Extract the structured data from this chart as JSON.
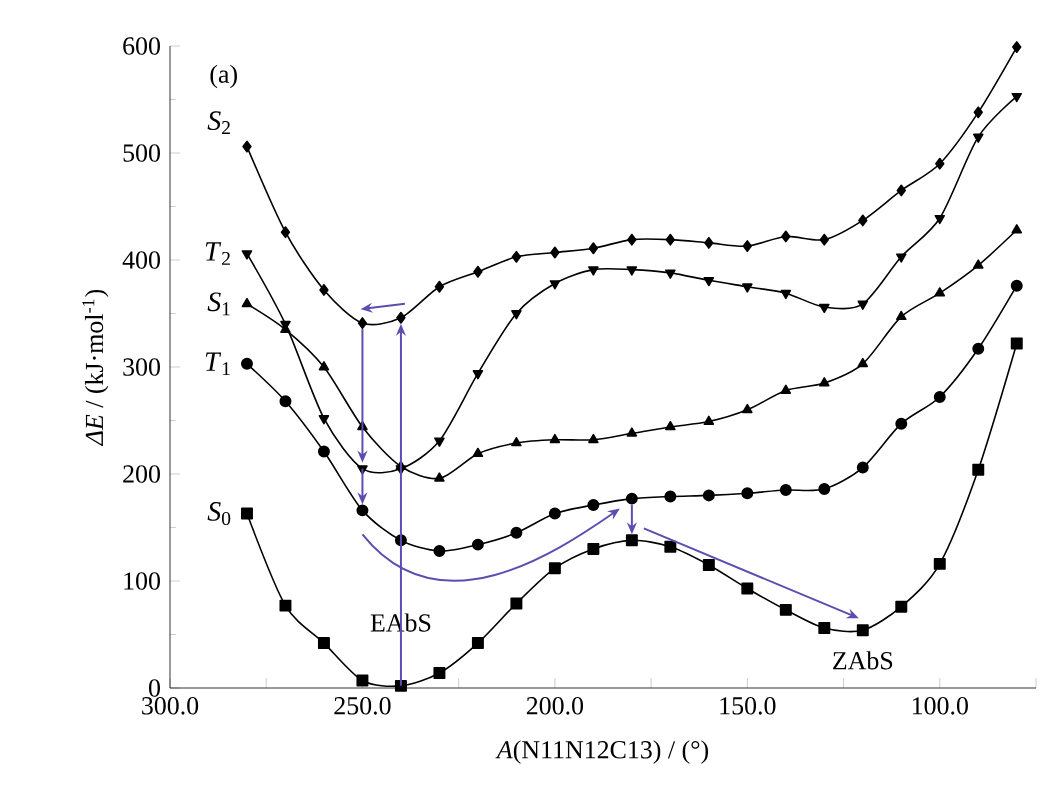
{
  "chart_data": {
    "type": "line",
    "xlabel": "*A*(N11N12C13) / (°)",
    "ylabel": "*ΔE* / (kJ·mol$^{-1}$)",
    "x": [
      280,
      270,
      260,
      250,
      240,
      230,
      220,
      210,
      200,
      190,
      180,
      170,
      160,
      150,
      140,
      130,
      120,
      110,
      100,
      90,
      80
    ],
    "xlim": [
      300,
      75
    ],
    "xticks": [
      {
        "value": 300,
        "label": "300.0"
      },
      {
        "value": 275,
        "label": null
      },
      {
        "value": 250,
        "label": "250.0"
      },
      {
        "value": 225,
        "label": null
      },
      {
        "value": 200,
        "label": "200.0"
      },
      {
        "value": 175,
        "label": null
      },
      {
        "value": 150,
        "label": "150.0"
      },
      {
        "value": 125,
        "label": null
      },
      {
        "value": 100,
        "label": "100.0"
      },
      {
        "value": 75,
        "label": null
      }
    ],
    "ylim": [
      0,
      600
    ],
    "yticks": [
      0,
      100,
      200,
      300,
      400,
      500,
      600
    ],
    "line_style": "solid",
    "series": [
      {
        "name": "*S*$_{2}$",
        "color": "#000000",
        "marker": "diamond",
        "values": [
          506,
          426,
          372,
          341,
          346,
          375,
          389,
          403,
          407,
          411,
          419,
          419,
          416,
          413,
          422,
          419,
          437,
          465,
          490,
          538,
          599
        ]
      },
      {
        "name": "*T*$_{2}$",
        "color": "#000000",
        "marker": "triangle-down",
        "values": [
          406,
          340,
          252,
          205,
          205,
          231,
          294,
          350,
          378,
          391,
          391,
          388,
          381,
          375,
          369,
          356,
          359,
          403,
          439,
          515,
          553
        ]
      },
      {
        "name": "*S*$_{1}$",
        "color": "#000000",
        "marker": "triangle",
        "values": [
          359,
          335,
          300,
          244,
          207,
          196,
          219,
          229,
          232,
          232,
          238,
          244,
          249,
          260,
          278,
          285,
          303,
          347,
          369,
          395,
          428
        ]
      },
      {
        "name": "*T*$_{1}$",
        "color": "#000000",
        "marker": "circle",
        "values": [
          303,
          268,
          221,
          166,
          138,
          128,
          134,
          145,
          163,
          171,
          177,
          179,
          180,
          182,
          185,
          186,
          206,
          247,
          272,
          317,
          376
        ]
      },
      {
        "name": "*S*$_{0}$",
        "color": "#000000",
        "marker": "square",
        "values": [
          163,
          77,
          42,
          7,
          2,
          14,
          42,
          79,
          112,
          130,
          138,
          132,
          115,
          93,
          73,
          56,
          54,
          76,
          116,
          204,
          322
        ]
      }
    ],
    "annotations": [
      "(a)",
      {
        "text": "EAbS",
        "x": 240,
        "y": 2
      },
      {
        "text": "ZAbS",
        "x": 120,
        "y": 54
      }
    ]
  }
}
